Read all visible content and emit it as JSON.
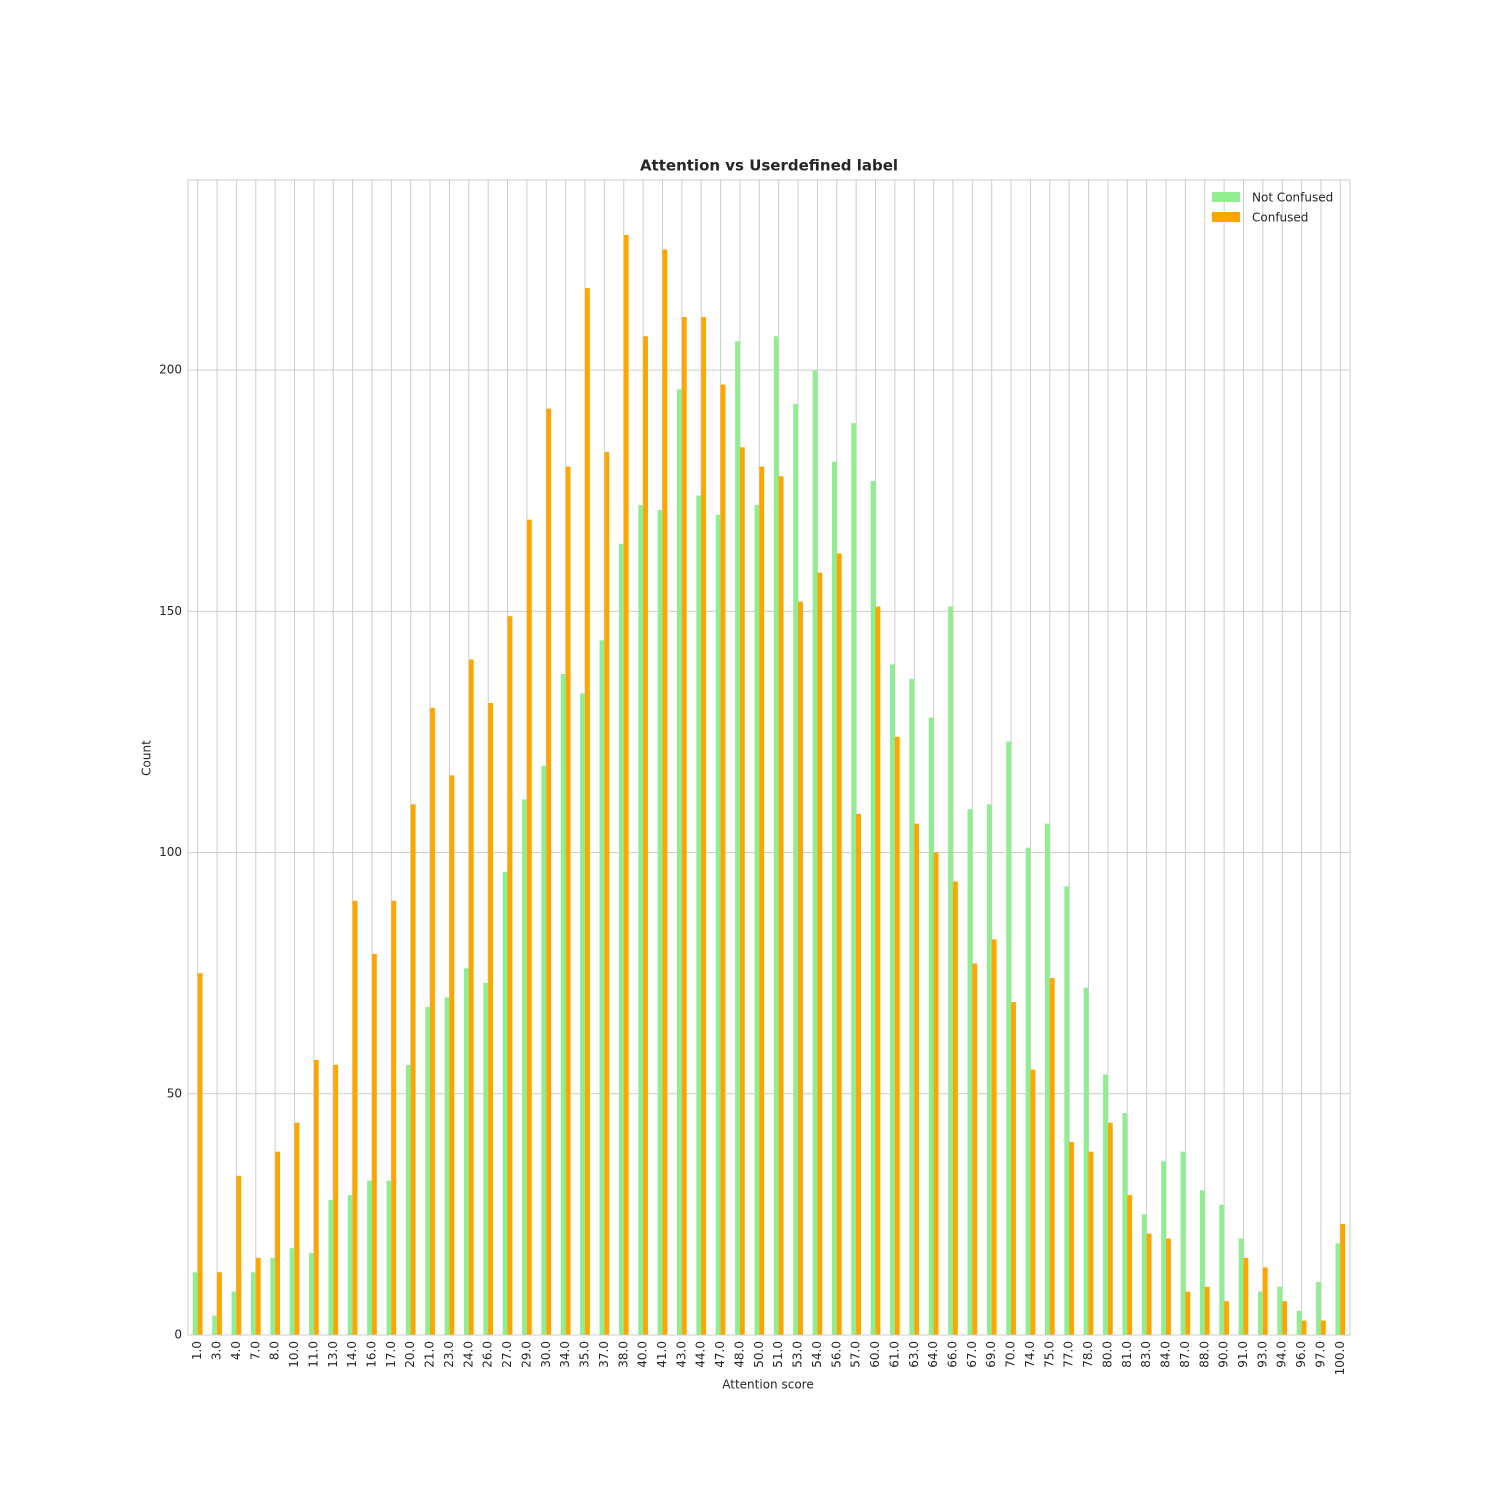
{
  "chart_data": {
    "type": "bar",
    "title": "Attention vs Userdefined label",
    "x_label": "Attention score",
    "y_label": "Count",
    "categories": [
      "1.0",
      "3.0",
      "4.0",
      "7.0",
      "8.0",
      "10.0",
      "11.0",
      "13.0",
      "14.0",
      "16.0",
      "17.0",
      "20.0",
      "21.0",
      "23.0",
      "24.0",
      "26.0",
      "27.0",
      "29.0",
      "30.0",
      "34.0",
      "35.0",
      "37.0",
      "38.0",
      "40.0",
      "41.0",
      "43.0",
      "44.0",
      "47.0",
      "48.0",
      "50.0",
      "51.0",
      "53.0",
      "54.0",
      "56.0",
      "57.0",
      "60.0",
      "61.0",
      "63.0",
      "64.0",
      "66.0",
      "67.0",
      "69.0",
      "70.0",
      "74.0",
      "75.0",
      "77.0",
      "78.0",
      "80.0",
      "81.0",
      "83.0",
      "84.0",
      "87.0",
      "88.0",
      "90.0",
      "91.0",
      "93.0",
      "94.0",
      "96.0",
      "97.0",
      "100.0"
    ],
    "series": [
      {
        "name": "Not Confused",
        "color": "#90ee90",
        "values": [
          13,
          4,
          9,
          13,
          16,
          18,
          17,
          28,
          29,
          32,
          32,
          56,
          68,
          70,
          76,
          73,
          96,
          111,
          118,
          137,
          133,
          144,
          164,
          172,
          171,
          196,
          174,
          170,
          206,
          172,
          207,
          193,
          200,
          181,
          189,
          177,
          139,
          136,
          128,
          151,
          109,
          110,
          123,
          101,
          106,
          93,
          72,
          54,
          46,
          25,
          36,
          38,
          30,
          27,
          20,
          9,
          10,
          5,
          11,
          19
        ]
      },
      {
        "name": "Confused",
        "color": "#ffa500",
        "values": [
          75,
          13,
          33,
          16,
          38,
          44,
          57,
          56,
          90,
          79,
          90,
          110,
          130,
          116,
          140,
          131,
          149,
          169,
          192,
          180,
          217,
          183,
          228,
          207,
          225,
          211,
          211,
          197,
          184,
          180,
          178,
          152,
          158,
          162,
          108,
          151,
          124,
          106,
          100,
          94,
          77,
          82,
          69,
          55,
          74,
          40,
          38,
          44,
          29,
          21,
          20,
          9,
          10,
          7,
          16,
          14,
          7,
          3,
          3,
          23
        ]
      }
    ],
    "ylim": [
      0,
      239.4
    ],
    "yticks": [
      0,
      50,
      100,
      150,
      200
    ],
    "grid": true,
    "legend": "upper right"
  }
}
